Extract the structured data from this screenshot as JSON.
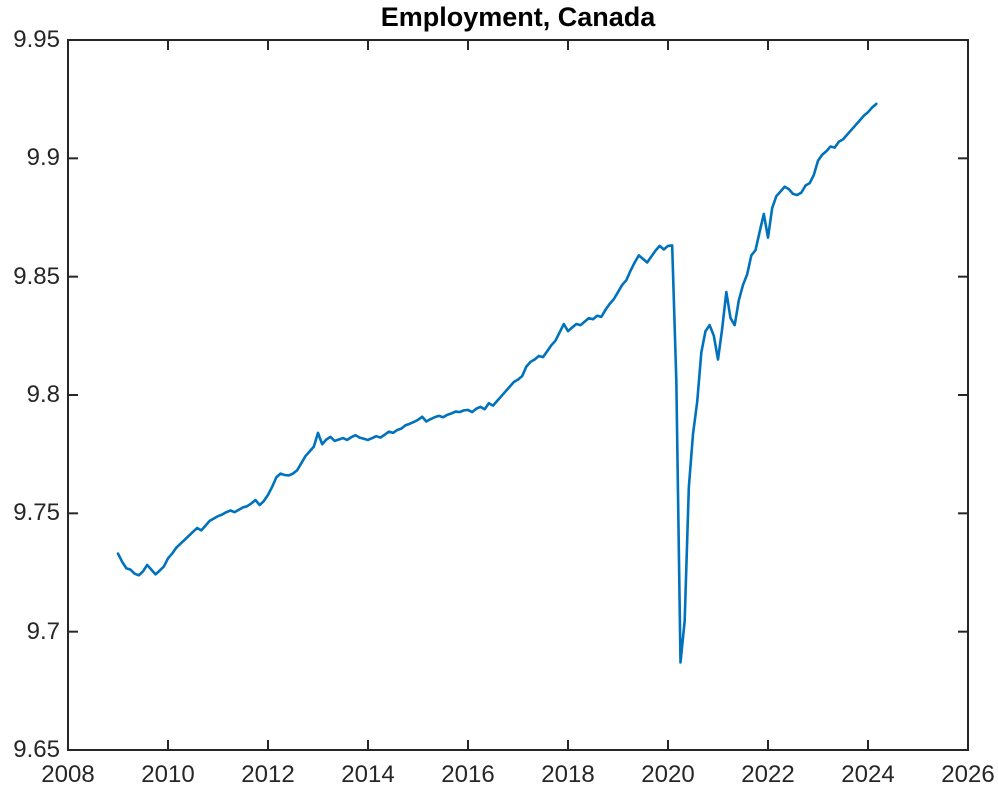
{
  "figure": {
    "background": "#ffffff"
  },
  "chart_data": {
    "type": "line",
    "title": "Employment, Canada",
    "xlabel": "",
    "ylabel": "",
    "xlim": [
      2008,
      2026
    ],
    "ylim": [
      9.65,
      9.95
    ],
    "xticks": [
      2008,
      2010,
      2012,
      2014,
      2016,
      2018,
      2020,
      2022,
      2024,
      2026
    ],
    "xtick_labels": [
      "2008",
      "2010",
      "2012",
      "2014",
      "2016",
      "2018",
      "2020",
      "2022",
      "2024",
      "2026"
    ],
    "yticks": [
      9.65,
      9.7,
      9.75,
      9.8,
      9.85,
      9.9,
      9.95
    ],
    "ytick_labels": [
      "9.65",
      "9.7",
      "9.75",
      "9.8",
      "9.85",
      "9.9",
      "9.95"
    ],
    "grid": false,
    "legend": false,
    "box": true,
    "tick_direction": "in",
    "line_color": "#0072BD",
    "axis_color": "#262626",
    "title_color": "#000000",
    "series": [
      {
        "name": "log-employment-canada",
        "frequency": "monthly",
        "x_start": 2009.0,
        "x_step": 0.0833333,
        "values": [
          9.733,
          9.7295,
          9.7268,
          9.7262,
          9.7245,
          9.7238,
          9.7255,
          9.7282,
          9.7262,
          9.7242,
          9.7258,
          9.7275,
          9.731,
          9.733,
          9.7355,
          9.7372,
          9.7388,
          9.7405,
          9.7422,
          9.7438,
          9.7428,
          9.7448,
          9.7468,
          9.7478,
          9.7488,
          9.7495,
          9.7505,
          9.7512,
          9.7505,
          9.7515,
          9.7525,
          9.753,
          9.7542,
          9.7556,
          9.7535,
          9.7552,
          9.7578,
          9.7612,
          9.7652,
          9.7668,
          9.7662,
          9.766,
          9.7668,
          9.7682,
          9.7712,
          9.7742,
          9.7762,
          9.7782,
          9.784,
          9.7792,
          9.7812,
          9.7823,
          9.7806,
          9.7812,
          9.7818,
          9.781,
          9.7822,
          9.783,
          9.782,
          9.7815,
          9.781,
          9.7818,
          9.7826,
          9.782,
          9.7832,
          9.7845,
          9.784,
          9.7852,
          9.7858,
          9.7872,
          9.7878,
          9.7886,
          9.7895,
          9.7908,
          9.7888,
          9.7898,
          9.7906,
          9.7912,
          9.7906,
          9.7916,
          9.7922,
          9.793,
          9.7928,
          9.7935,
          9.7937,
          9.7928,
          9.7942,
          9.795,
          9.794,
          9.7965,
          9.7955,
          9.7975,
          9.7995,
          9.8015,
          9.8035,
          9.8055,
          9.8065,
          9.808,
          9.812,
          9.814,
          9.815,
          9.8165,
          9.816,
          9.8185,
          9.821,
          9.823,
          9.8265,
          9.83,
          9.827,
          9.8285,
          9.83,
          9.8295,
          9.831,
          9.8325,
          9.832,
          9.8335,
          9.833,
          9.836,
          9.8385,
          9.8405,
          9.8435,
          9.8465,
          9.8485,
          9.8525,
          9.856,
          9.859,
          9.8575,
          9.856,
          9.8585,
          9.861,
          9.863,
          9.8615,
          9.863,
          9.8632,
          9.806,
          9.687,
          9.7045,
          9.761,
          9.7835,
          9.797,
          9.818,
          9.827,
          9.8295,
          9.825,
          9.815,
          9.828,
          9.8435,
          9.8325,
          9.8295,
          9.84,
          9.8465,
          9.851,
          9.859,
          9.8612,
          9.869,
          9.8765,
          9.8665,
          9.879,
          9.884,
          9.886,
          9.888,
          9.887,
          9.885,
          9.8845,
          9.8855,
          9.8885,
          9.8895,
          9.893,
          9.899,
          9.9015,
          9.903,
          9.905,
          9.9045,
          9.907,
          9.908,
          9.91,
          9.912,
          9.914,
          9.916,
          9.918,
          9.9195,
          9.9215,
          9.923
        ]
      }
    ]
  }
}
